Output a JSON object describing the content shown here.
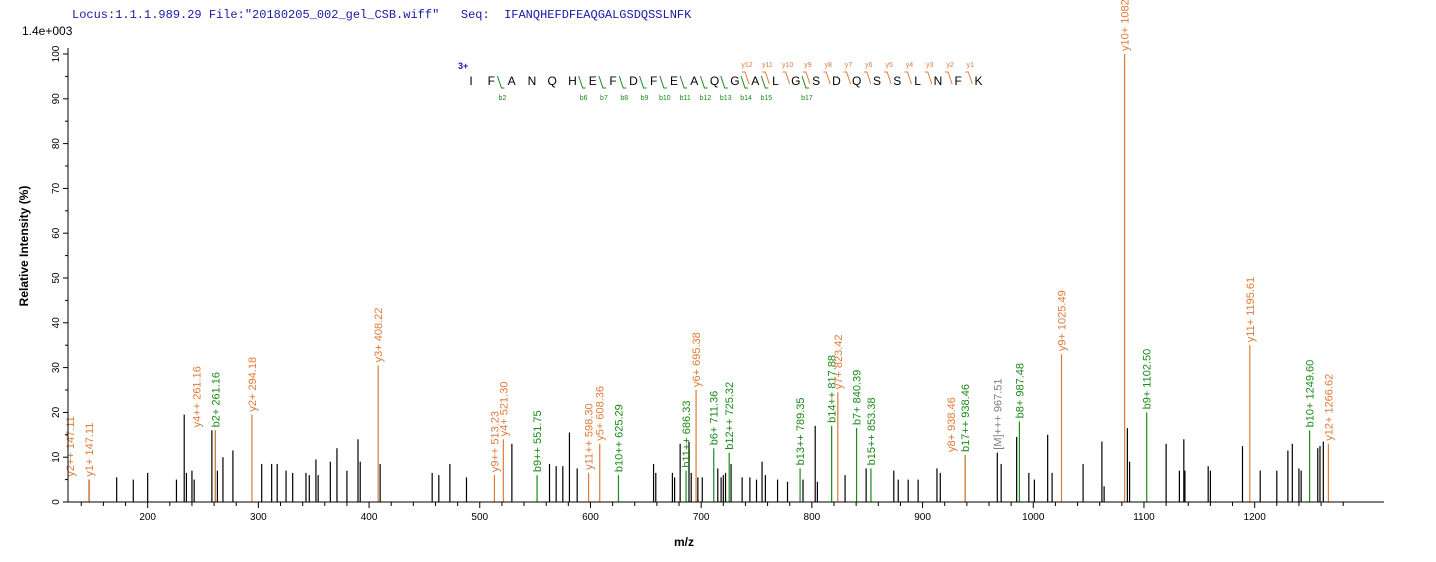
{
  "header": {
    "locus": "Locus:1.1.1.989.29",
    "file": "File:\"20180205_002_gel_CSB.wiff\"",
    "seq": "Seq:  IFANQHEFDFEAQGALGSDQSSLNFK"
  },
  "chart_data": {
    "type": "bar",
    "scale_label": "1.4e+003",
    "xlabel": "m/z",
    "ylabel": "Relative   Intensity (%)",
    "xlim": [
      140,
      1285
    ],
    "ylim": [
      0,
      100
    ],
    "xticks": [
      200,
      300,
      400,
      500,
      600,
      700,
      800,
      900,
      1000,
      1100,
      1200
    ],
    "yticks": [
      0,
      10,
      20,
      30,
      40,
      50,
      60,
      70,
      80,
      90,
      100
    ],
    "colors": {
      "y": "#e07b39",
      "b": "#1a8a1a",
      "other": "#000000",
      "charge": "#1a1aa6",
      "precursor": "#808080"
    },
    "charge": "3+",
    "sequence": [
      "I",
      "F",
      "A",
      "N",
      "Q",
      "H",
      "E",
      "F",
      "D",
      "F",
      "E",
      "A",
      "Q",
      "G",
      "A",
      "L",
      "G",
      "S",
      "D",
      "Q",
      "S",
      "S",
      "L",
      "N",
      "F",
      "K"
    ],
    "b_ion_markers": [
      {
        "after": 2,
        "label": "b2"
      },
      {
        "after": 6,
        "label": "b6"
      },
      {
        "after": 7,
        "label": "b7"
      },
      {
        "after": 8,
        "label": "b8"
      },
      {
        "after": 9,
        "label": "b9"
      },
      {
        "after": 10,
        "label": "b10"
      },
      {
        "after": 11,
        "label": "b11"
      },
      {
        "after": 12,
        "label": "b12"
      },
      {
        "after": 13,
        "label": "b13"
      },
      {
        "after": 14,
        "label": "b14"
      },
      {
        "after": 15,
        "label": "b15"
      },
      {
        "after": 17,
        "label": "b17"
      }
    ],
    "y_ion_markers": [
      {
        "after": 14,
        "label": "y12"
      },
      {
        "after": 15,
        "label": "y11"
      },
      {
        "after": 16,
        "label": "y10"
      },
      {
        "after": 17,
        "label": "y9"
      },
      {
        "after": 18,
        "label": "y8"
      },
      {
        "after": 19,
        "label": "y7"
      },
      {
        "after": 20,
        "label": "y6"
      },
      {
        "after": 21,
        "label": "y5"
      },
      {
        "after": 22,
        "label": "y4"
      },
      {
        "after": 23,
        "label": "y3"
      },
      {
        "after": 24,
        "label": "y2"
      },
      {
        "after": 25,
        "label": "y1"
      }
    ],
    "annotated_peaks": [
      {
        "mz": 147.11,
        "intensity": 5,
        "ion": "y",
        "label": "y1+ 147.11"
      },
      {
        "mz": 147.11,
        "intensity": 5,
        "ion": "y",
        "label": "y2++ 147.11",
        "label_offset": 19
      },
      {
        "mz": 261.16,
        "intensity": 16,
        "ion": "b",
        "label": "b2+ 261.16"
      },
      {
        "mz": 261.16,
        "intensity": 16,
        "ion": "y",
        "label": "y4++ 261.16",
        "label_offset": 19
      },
      {
        "mz": 294.18,
        "intensity": 19.5,
        "ion": "y",
        "label": "y2+ 294.18"
      },
      {
        "mz": 408.22,
        "intensity": 30.5,
        "ion": "y",
        "label": "y3+ 408.22"
      },
      {
        "mz": 513.23,
        "intensity": 6,
        "ion": "y",
        "label": "y9++ 513.23"
      },
      {
        "mz": 521.3,
        "intensity": 14,
        "ion": "y",
        "label": "y4+ 521.30"
      },
      {
        "mz": 551.75,
        "intensity": 6,
        "ion": "b",
        "label": "b9++ 551.75"
      },
      {
        "mz": 598.3,
        "intensity": 6.5,
        "ion": "y",
        "label": "y11++ 598.30"
      },
      {
        "mz": 608.36,
        "intensity": 13,
        "ion": "y",
        "label": "y5+ 608.36"
      },
      {
        "mz": 625.29,
        "intensity": 6,
        "ion": "b",
        "label": "b10++ 625.29"
      },
      {
        "mz": 686.33,
        "intensity": 7,
        "ion": "b",
        "label": "b11++ 686.33"
      },
      {
        "mz": 695.38,
        "intensity": 25,
        "ion": "y",
        "label": "y6+ 695.38"
      },
      {
        "mz": 711.36,
        "intensity": 12,
        "ion": "b",
        "label": "b6+ 711.36"
      },
      {
        "mz": 725.32,
        "intensity": 11,
        "ion": "b",
        "label": "b12++ 725.32"
      },
      {
        "mz": 789.35,
        "intensity": 7.5,
        "ion": "b",
        "label": "b13++ 789.35"
      },
      {
        "mz": 817.88,
        "intensity": 17,
        "ion": "b",
        "label": "b14++ 817.88"
      },
      {
        "mz": 823.42,
        "intensity": 24.5,
        "ion": "y",
        "label": "y7+ 823.42"
      },
      {
        "mz": 840.39,
        "intensity": 16.5,
        "ion": "b",
        "label": "b7+ 840.39"
      },
      {
        "mz": 853.38,
        "intensity": 7.5,
        "ion": "b",
        "label": "b15++ 853.38"
      },
      {
        "mz": 938.46,
        "intensity": 10.5,
        "ion": "b",
        "label": "b17++ 938.46"
      },
      {
        "mz": 938.46,
        "intensity": 10.5,
        "ion": "y",
        "label": "y8+ 938.46",
        "label_offset": 14
      },
      {
        "mz": 967.51,
        "intensity": 11,
        "ion": "other",
        "label": "[M]+++ 967.51"
      },
      {
        "mz": 987.48,
        "intensity": 18,
        "ion": "b",
        "label": "b8+ 987.48"
      },
      {
        "mz": 1025.49,
        "intensity": 33,
        "ion": "y",
        "label": "y9+ 1025.49"
      },
      {
        "mz": 1082.51,
        "intensity": 100,
        "ion": "y",
        "label": "y10+ 1082.51"
      },
      {
        "mz": 1102.5,
        "intensity": 20,
        "ion": "b",
        "label": "b9+ 1102.50"
      },
      {
        "mz": 1195.61,
        "intensity": 35,
        "ion": "y",
        "label": "y11+ 1195.61"
      },
      {
        "mz": 1249.6,
        "intensity": 16,
        "ion": "b",
        "label": "b10+ 1249.60"
      },
      {
        "mz": 1266.62,
        "intensity": 13,
        "ion": "y",
        "label": "y12+ 1266.62"
      }
    ],
    "other_peaks": [
      [
        147,
        5
      ],
      [
        172,
        5.5
      ],
      [
        187,
        5
      ],
      [
        200,
        6.5
      ],
      [
        226,
        5
      ],
      [
        233,
        19.5
      ],
      [
        235,
        6.5
      ],
      [
        240,
        7
      ],
      [
        242,
        5
      ],
      [
        258,
        16
      ],
      [
        263,
        7
      ],
      [
        268,
        10
      ],
      [
        277,
        11.5
      ],
      [
        303,
        8.5
      ],
      [
        312,
        8.5
      ],
      [
        317,
        8.5
      ],
      [
        325,
        7
      ],
      [
        331,
        6.5
      ],
      [
        343,
        6.5
      ],
      [
        346,
        6
      ],
      [
        352,
        9.5
      ],
      [
        354,
        6
      ],
      [
        365,
        9
      ],
      [
        371,
        12
      ],
      [
        380,
        7
      ],
      [
        390,
        14
      ],
      [
        392,
        9
      ],
      [
        410,
        8.5
      ],
      [
        457,
        6.5
      ],
      [
        463,
        6
      ],
      [
        473,
        8.5
      ],
      [
        488,
        5.5
      ],
      [
        529,
        13
      ],
      [
        563,
        8.5
      ],
      [
        569,
        8
      ],
      [
        575,
        8
      ],
      [
        581,
        15.5
      ],
      [
        588,
        7.5
      ],
      [
        657,
        8.5
      ],
      [
        659,
        6.5
      ],
      [
        674,
        6.5
      ],
      [
        676,
        5.5
      ],
      [
        681,
        13
      ],
      [
        689,
        13.5
      ],
      [
        691,
        6.5
      ],
      [
        697,
        5.5
      ],
      [
        701,
        5.5
      ],
      [
        715,
        7.5
      ],
      [
        718,
        5.5
      ],
      [
        720,
        6
      ],
      [
        722,
        6.5
      ],
      [
        727,
        8.5
      ],
      [
        737,
        5.5
      ],
      [
        744,
        5.5
      ],
      [
        750,
        5
      ],
      [
        755,
        9
      ],
      [
        758,
        6
      ],
      [
        769,
        5
      ],
      [
        778,
        4.5
      ],
      [
        792,
        5
      ],
      [
        803,
        17
      ],
      [
        805,
        4.5
      ],
      [
        830,
        6
      ],
      [
        849,
        7.5
      ],
      [
        874,
        7
      ],
      [
        878,
        5
      ],
      [
        887,
        5
      ],
      [
        896,
        5
      ],
      [
        913,
        7.5
      ],
      [
        916,
        6.5
      ],
      [
        971,
        8.5
      ],
      [
        985,
        14.5
      ],
      [
        996,
        6.5
      ],
      [
        1001,
        5
      ],
      [
        1013,
        15
      ],
      [
        1017,
        6.5
      ],
      [
        1045,
        8.5
      ],
      [
        1062,
        13.5
      ],
      [
        1064,
        3.5
      ],
      [
        1085,
        16.5
      ],
      [
        1087,
        9
      ],
      [
        1120,
        13
      ],
      [
        1132,
        7
      ],
      [
        1136,
        14
      ],
      [
        1137,
        7
      ],
      [
        1158,
        8
      ],
      [
        1160,
        7
      ],
      [
        1189,
        12.5
      ],
      [
        1205,
        7
      ],
      [
        1220,
        7
      ],
      [
        1230,
        11.5
      ],
      [
        1234,
        13
      ],
      [
        1240,
        7.5
      ],
      [
        1242,
        7
      ],
      [
        1257,
        12
      ],
      [
        1259,
        12.5
      ],
      [
        1262,
        13.5
      ]
    ]
  }
}
